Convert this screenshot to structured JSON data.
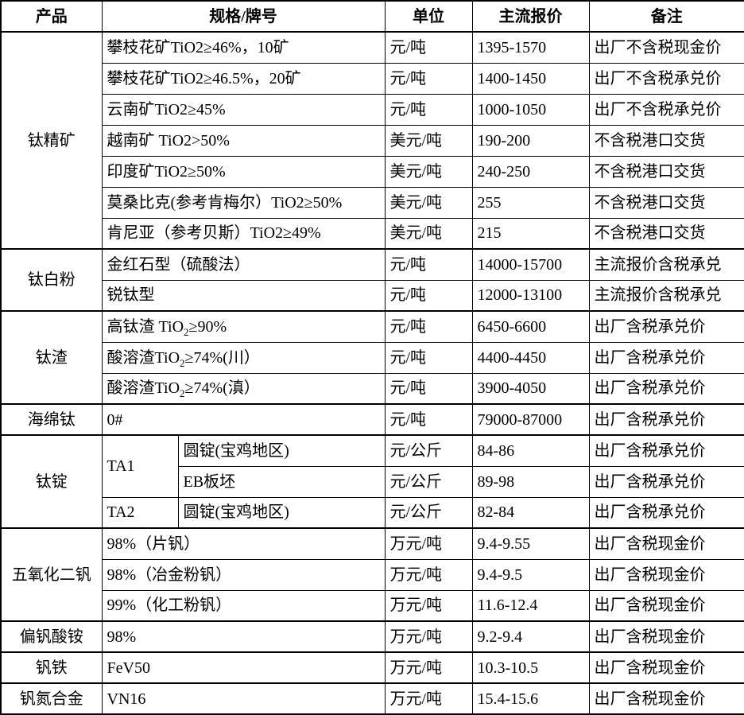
{
  "colors": {
    "background": "#ffffff",
    "border": "#000000",
    "text": "#000000"
  },
  "table": {
    "headers": [
      "产品",
      "规格/牌号",
      "单位",
      "主流报价",
      "备注"
    ],
    "groups": [
      {
        "product": "钛精矿",
        "rows": [
          {
            "spec": "攀枝花矿TiO2≥46%，10矿",
            "unit": "元/吨",
            "price": "1395-1570",
            "note": "出厂不含税现金价"
          },
          {
            "spec": "攀枝花矿TiO2≥46.5%，20矿",
            "unit": "元/吨",
            "price": "1400-1450",
            "note": "出厂不含税承兑价"
          },
          {
            "spec": "云南矿TiO2≥45%",
            "unit": "元/吨",
            "price": "1000-1050",
            "note": "出厂不含税承兑价"
          },
          {
            "spec": "越南矿 TiO2>50%",
            "unit": "美元/吨",
            "price": "190-200",
            "note": "不含税港口交货"
          },
          {
            "spec": "印度矿TiO2≥50%",
            "unit": "美元/吨",
            "price": "240-250",
            "note": "不含税港口交货"
          },
          {
            "spec": "莫桑比克(参考肯梅尔）TiO2≥50%",
            "unit": "美元/吨",
            "price": "255",
            "note": "不含税港口交货"
          },
          {
            "spec": "肯尼亚（参考贝斯）TiO2≥49%",
            "unit": "美元/吨",
            "price": "215",
            "note": "不含税港口交货"
          }
        ]
      },
      {
        "product": "钛白粉",
        "rows": [
          {
            "spec": "金红石型（硫酸法）",
            "unit": "元/吨",
            "price": "14000-15700",
            "note": "主流报价含税承兑"
          },
          {
            "spec": "锐钛型",
            "unit": "元/吨",
            "price": "12000-13100",
            "note": "主流报价含税承兑"
          }
        ]
      },
      {
        "product": "钛渣",
        "rows": [
          {
            "spec": "高钛渣 TiO₂≥90%",
            "unit": "元/吨",
            "price": "6450-6600",
            "note": "出厂含税承兑价"
          },
          {
            "spec": "酸溶渣TiO₂≥74%(川）",
            "unit": "元/吨",
            "price": "4400-4450",
            "note": "出厂含税承兑价"
          },
          {
            "spec": "酸溶渣TiO₂≥74%(滇）",
            "unit": "元/吨",
            "price": "3900-4050",
            "note": "出厂含税承兑价"
          }
        ]
      },
      {
        "product": "海绵钛",
        "rows": [
          {
            "spec": "0#",
            "unit": "元/吨",
            "price": "79000-87000",
            "note": "出厂含税承兑价"
          }
        ]
      },
      {
        "product": "钛锭",
        "subgroups": [
          {
            "grade": "TA1",
            "rows": [
              {
                "spec": "圆锭(宝鸡地区)",
                "unit": "元/公斤",
                "price": "84-86",
                "note": "出厂含税承兑价"
              },
              {
                "spec": "EB板坯",
                "unit": "元/公斤",
                "price": "89-98",
                "note": "出厂含税承兑价"
              }
            ]
          },
          {
            "grade": "TA2",
            "rows": [
              {
                "spec": "圆锭(宝鸡地区)",
                "unit": "元/公斤",
                "price": "82-84",
                "note": "出厂含税承兑价"
              }
            ]
          }
        ]
      },
      {
        "product": "五氧化二钒",
        "rows": [
          {
            "spec": "98%（片钒）",
            "unit": "万元/吨",
            "price": "9.4-9.55",
            "note": "出厂含税现金价"
          },
          {
            "spec": "98%（冶金粉钒）",
            "unit": "万元/吨",
            "price": "9.4-9.5",
            "note": "出厂含税现金价"
          },
          {
            "spec": "99%（化工粉钒）",
            "unit": "万元/吨",
            "price": "11.6-12.4",
            "note": "出厂含税现金价"
          }
        ]
      },
      {
        "product": "偏钒酸铵",
        "rows": [
          {
            "spec": "98%",
            "unit": "万元/吨",
            "price": "9.2-9.4",
            "note": "出厂含税现金价"
          }
        ]
      },
      {
        "product": "钒铁",
        "rows": [
          {
            "spec": "FeV50",
            "unit": "万元/吨",
            "price": "10.3-10.5",
            "note": "出厂含税现金价"
          }
        ]
      },
      {
        "product": "钒氮合金",
        "rows": [
          {
            "spec": "VN16",
            "unit": "万元/吨",
            "price": "15.4-15.6",
            "note": "出厂含税现金价"
          }
        ]
      }
    ]
  }
}
